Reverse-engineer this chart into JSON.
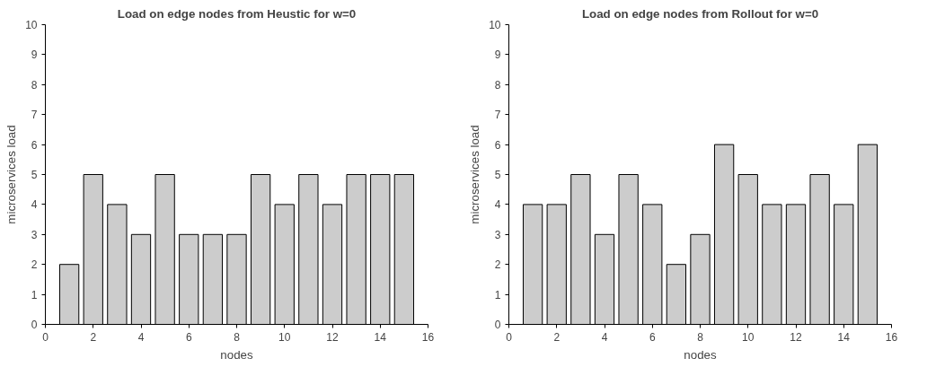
{
  "chart_data": [
    {
      "type": "bar",
      "title": "Load on edge nodes from Heustic for w=0",
      "xlabel": "nodes",
      "ylabel": "microservices load",
      "x": [
        1,
        2,
        3,
        4,
        5,
        6,
        7,
        8,
        9,
        10,
        11,
        12,
        13,
        14,
        15
      ],
      "series": [
        {
          "color": "#cccccc",
          "values": [
            2,
            5,
            4,
            3,
            5,
            3,
            3,
            3,
            5,
            4,
            5,
            4,
            5,
            5,
            5
          ]
        }
      ],
      "xlim": [
        0,
        16
      ],
      "xticks": [
        0,
        2,
        4,
        6,
        8,
        10,
        12,
        14,
        16
      ],
      "ylim": [
        0,
        10
      ],
      "yticks": [
        0,
        1,
        2,
        3,
        4,
        5,
        6,
        7,
        8,
        9,
        10
      ],
      "grid": false
    },
    {
      "type": "bar",
      "title": "Load on edge nodes from Rollout for w=0",
      "xlabel": "nodes",
      "ylabel": "microservices load",
      "x": [
        1,
        2,
        3,
        4,
        5,
        6,
        7,
        8,
        9,
        10,
        11,
        12,
        13,
        14,
        15
      ],
      "series": [
        {
          "color": "#cccccc",
          "values": [
            4,
            4,
            5,
            3,
            5,
            4,
            2,
            3,
            6,
            5,
            4,
            4,
            5,
            4,
            6
          ]
        }
      ],
      "xlim": [
        0,
        16
      ],
      "xticks": [
        0,
        2,
        4,
        6,
        8,
        10,
        12,
        14,
        16
      ],
      "ylim": [
        0,
        10
      ],
      "yticks": [
        0,
        1,
        2,
        3,
        4,
        5,
        6,
        7,
        8,
        9,
        10
      ],
      "grid": false
    }
  ]
}
